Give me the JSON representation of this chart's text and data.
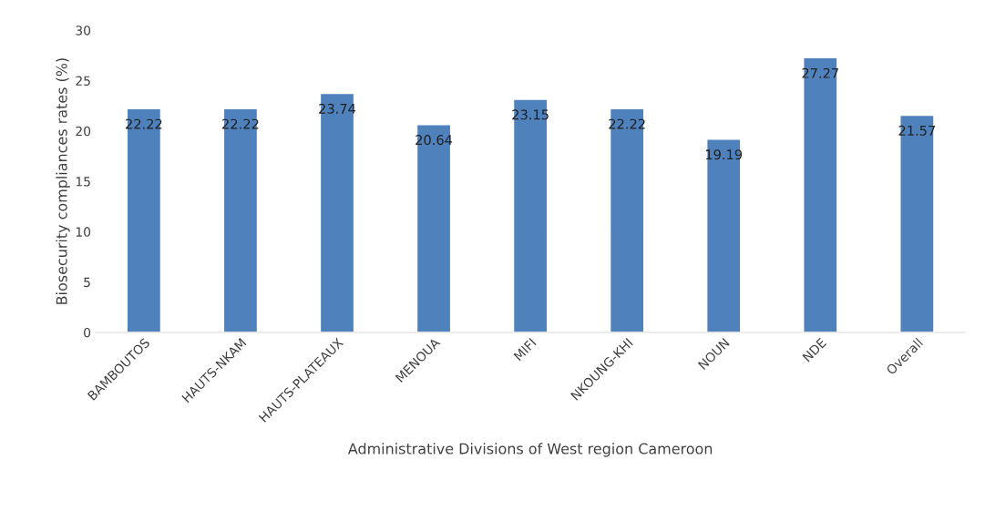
{
  "chart_data": {
    "type": "bar",
    "xlabel": "Administrative Divisions of West region Cameroon",
    "ylabel": "Biosecurity compliances rates (%)",
    "categories": [
      "BAMBOUTOS",
      "HAUTS-NKAM",
      "HAUTS-PLATEAUX",
      "MENOUA",
      "MIFI",
      "NKOUNG-KHI",
      "NOUN",
      "NDE",
      "Overall"
    ],
    "values": [
      22.22,
      22.22,
      23.74,
      20.64,
      23.15,
      22.22,
      19.19,
      27.27,
      21.57
    ],
    "color": "#4f81bd",
    "ylim": [
      0,
      30
    ],
    "yticks": [
      0,
      5,
      10,
      15,
      20,
      25,
      30
    ],
    "data_labels": true,
    "grid": false,
    "legend": false
  }
}
